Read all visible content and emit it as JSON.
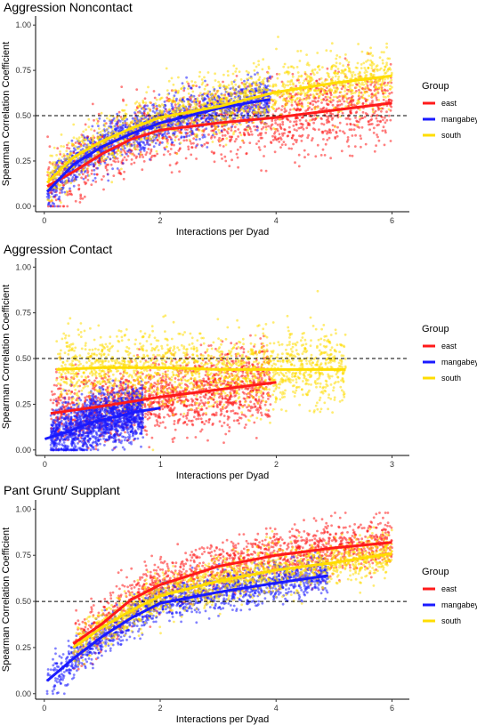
{
  "chart_data": [
    {
      "type": "scatter",
      "title": "Aggression Noncontact",
      "xlabel": "Interactions per Dyad",
      "ylabel": "Spearman Correlation Coefficient",
      "xlim": [
        -0.15,
        6.3
      ],
      "ylim": [
        -0.03,
        1.05
      ],
      "xticks": [
        "0",
        "2",
        "4",
        "6"
      ],
      "yticks": [
        "0.00",
        "0.25",
        "0.50",
        "0.75",
        "1.00"
      ],
      "hline": 0.5,
      "legend_title": "Group",
      "legend_position": "right",
      "series": [
        {
          "name": "east",
          "color": "#ff1a1a",
          "x_range": [
            0.05,
            6.0
          ],
          "curve_x": [
            0.05,
            0.5,
            1.0,
            1.5,
            2.0,
            3.0,
            4.0,
            5.0,
            6.0
          ],
          "curve_y": [
            0.11,
            0.19,
            0.29,
            0.37,
            0.42,
            0.46,
            0.49,
            0.53,
            0.57
          ],
          "spread": 0.1
        },
        {
          "name": "mangabey",
          "color": "#1a1aff",
          "x_range": [
            0.05,
            3.9
          ],
          "curve_x": [
            0.05,
            0.5,
            1.0,
            1.5,
            2.0,
            2.5,
            3.0,
            3.5,
            3.9
          ],
          "curve_y": [
            0.08,
            0.23,
            0.33,
            0.4,
            0.46,
            0.5,
            0.54,
            0.57,
            0.59
          ],
          "spread": 0.06
        },
        {
          "name": "south",
          "color": "#ffdd00",
          "x_range": [
            0.05,
            6.0
          ],
          "curve_x": [
            0.05,
            0.5,
            1.0,
            1.5,
            2.0,
            3.0,
            4.0,
            5.0,
            6.0
          ],
          "curve_y": [
            0.13,
            0.27,
            0.36,
            0.43,
            0.49,
            0.55,
            0.63,
            0.68,
            0.72
          ],
          "spread": 0.08
        }
      ]
    },
    {
      "type": "scatter",
      "title": "Aggression Contact",
      "xlabel": "Interactions per Dyad",
      "ylabel": "Spearman Correlation Coefficient",
      "xlim": [
        -0.08,
        3.15
      ],
      "ylim": [
        -0.03,
        1.05
      ],
      "xticks": [
        "0",
        "1",
        "2",
        "3"
      ],
      "yticks": [
        "0.00",
        "0.25",
        "0.50",
        "0.75",
        "1.00"
      ],
      "hline": 0.5,
      "legend_title": "Group",
      "legend_position": "right",
      "series": [
        {
          "name": "east",
          "color": "#ff1a1a",
          "x_range": [
            0.05,
            1.95
          ],
          "curve_x": [
            0.05,
            0.5,
            1.0,
            1.5,
            2.0
          ],
          "curve_y": [
            0.2,
            0.24,
            0.29,
            0.33,
            0.37
          ],
          "spread": 0.1
        },
        {
          "name": "mangabey",
          "color": "#1a1aff",
          "x_range": [
            0.05,
            0.85
          ],
          "curve_x": [
            0.0,
            0.2,
            0.4,
            0.6,
            0.8,
            1.0
          ],
          "curve_y": [
            0.06,
            0.1,
            0.15,
            0.18,
            0.21,
            0.23
          ],
          "spread": 0.07
        },
        {
          "name": "south",
          "color": "#ffdd00",
          "x_range": [
            0.1,
            2.6
          ],
          "curve_x": [
            0.1,
            0.5,
            1.0,
            1.5,
            2.0,
            2.6
          ],
          "curve_y": [
            0.44,
            0.45,
            0.45,
            0.44,
            0.44,
            0.44
          ],
          "spread": 0.1
        }
      ]
    },
    {
      "type": "scatter",
      "title": "Pant Grunt/ Supplant",
      "xlabel": "Interactions per Dyad",
      "ylabel": "Spearman Correlation Coefficient",
      "xlim": [
        -0.15,
        6.3
      ],
      "ylim": [
        -0.03,
        1.05
      ],
      "xticks": [
        "0",
        "2",
        "4",
        "6"
      ],
      "yticks": [
        "0.00",
        "0.25",
        "0.50",
        "0.75",
        "1.00"
      ],
      "hline": 0.5,
      "legend_title": "Group",
      "legend_position": "right",
      "series": [
        {
          "name": "east",
          "color": "#ff1a1a",
          "x_range": [
            0.5,
            6.0
          ],
          "curve_x": [
            0.5,
            1.0,
            1.5,
            2.0,
            3.0,
            4.0,
            5.0,
            6.0
          ],
          "curve_y": [
            0.27,
            0.38,
            0.51,
            0.59,
            0.69,
            0.75,
            0.79,
            0.82
          ],
          "spread": 0.07
        },
        {
          "name": "mangabey",
          "color": "#1a1aff",
          "x_range": [
            0.05,
            4.9
          ],
          "curve_x": [
            0.05,
            0.5,
            1.0,
            1.5,
            2.0,
            3.0,
            4.0,
            4.9
          ],
          "curve_y": [
            0.07,
            0.19,
            0.31,
            0.41,
            0.49,
            0.55,
            0.6,
            0.64
          ],
          "spread": 0.05
        },
        {
          "name": "south",
          "color": "#ffdd00",
          "x_range": [
            0.5,
            6.0
          ],
          "curve_x": [
            0.5,
            1.0,
            1.5,
            2.0,
            3.0,
            4.0,
            5.0,
            6.0
          ],
          "curve_y": [
            0.25,
            0.36,
            0.45,
            0.53,
            0.61,
            0.67,
            0.71,
            0.76
          ],
          "spread": 0.06
        }
      ]
    }
  ]
}
